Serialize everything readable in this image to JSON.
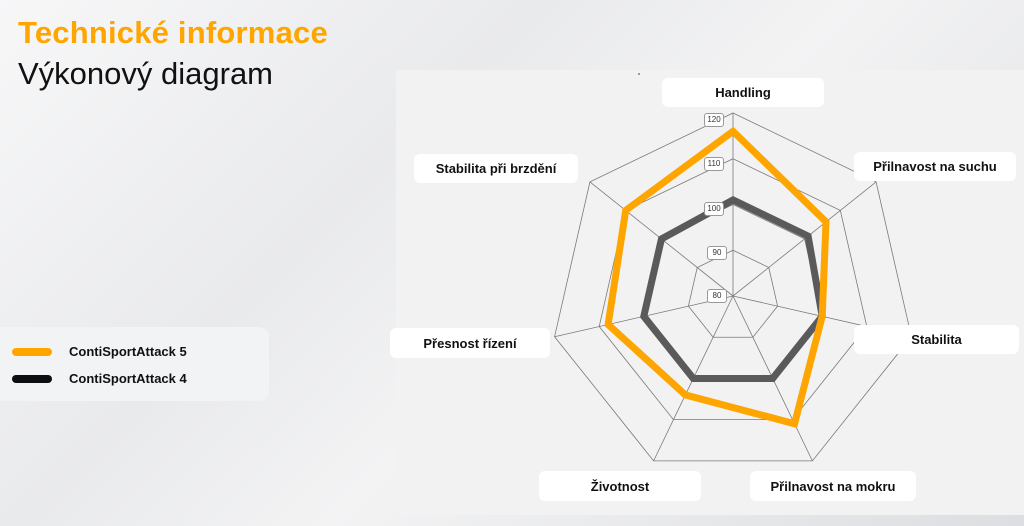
{
  "header": {
    "title": "Technické informace",
    "subtitle": "Výkonový diagram"
  },
  "legend": {
    "items": [
      {
        "label": "ContiSportAttack 5",
        "color": "#ffa500"
      },
      {
        "label": "ContiSportAttack 4",
        "color": "#0d0d12"
      }
    ]
  },
  "axis_labels": {
    "handling": "Handling",
    "dry_grip": "Přilnavost na suchu",
    "stability": "Stabilita",
    "wet_grip": "Přilnavost na mokru",
    "lifespan": "Životnost",
    "steering_precision": "Přesnost řízení",
    "braking_stability": "Stabilita při brzdění"
  },
  "ticks": [
    "120",
    "110",
    "100",
    "90",
    "80"
  ],
  "chart_data": {
    "type": "radar",
    "title": "Výkonový diagram",
    "categories": [
      "Handling",
      "Přilnavost na suchu",
      "Stabilita",
      "Přilnavost na mokru",
      "Životnost",
      "Přesnost řízení",
      "Stabilita při brzdění"
    ],
    "series": [
      {
        "name": "ContiSportAttack 5",
        "color": "#ffa500",
        "values": [
          116,
          106,
          100,
          111,
          104,
          108,
          110
        ]
      },
      {
        "name": "ContiSportAttack 4",
        "color": "#5a5a5a",
        "values": [
          101,
          101,
          100,
          100,
          100,
          100,
          100
        ]
      }
    ],
    "rlim": [
      80,
      120
    ],
    "rticks": [
      80,
      90,
      100,
      110,
      120
    ],
    "grid": true,
    "legend_position": "left"
  }
}
